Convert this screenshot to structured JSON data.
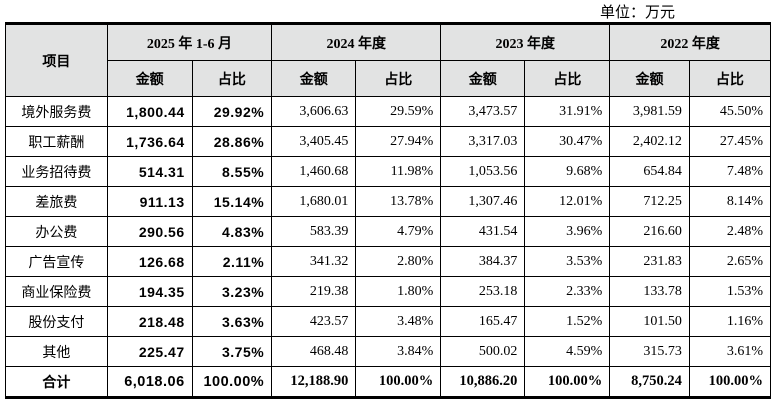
{
  "unit_label": "单位：万元",
  "colors": {
    "header_bg": "#e2e3e3",
    "border": "#000000",
    "text": "#000000",
    "page_bg": "#ffffff"
  },
  "table": {
    "item_header": "项目",
    "amount_header": "金额",
    "ratio_header": "占比",
    "period_headers": [
      "2025 年 1-6 月",
      "2024 年度",
      "2023 年度",
      "2022 年度"
    ],
    "rows": [
      {
        "item": "境外服务费",
        "values": [
          "1,800.44",
          "29.92%",
          "3,606.63",
          "29.59%",
          "3,473.57",
          "31.91%",
          "3,981.59",
          "45.50%"
        ]
      },
      {
        "item": "职工薪酬",
        "values": [
          "1,736.64",
          "28.86%",
          "3,405.45",
          "27.94%",
          "3,317.03",
          "30.47%",
          "2,402.12",
          "27.45%"
        ]
      },
      {
        "item": "业务招待费",
        "values": [
          "514.31",
          "8.55%",
          "1,460.68",
          "11.98%",
          "1,053.56",
          "9.68%",
          "654.84",
          "7.48%"
        ]
      },
      {
        "item": "差旅费",
        "values": [
          "911.13",
          "15.14%",
          "1,680.01",
          "13.78%",
          "1,307.46",
          "12.01%",
          "712.25",
          "8.14%"
        ]
      },
      {
        "item": "办公费",
        "values": [
          "290.56",
          "4.83%",
          "583.39",
          "4.79%",
          "431.54",
          "3.96%",
          "216.60",
          "2.48%"
        ]
      },
      {
        "item": "广告宣传",
        "values": [
          "126.68",
          "2.11%",
          "341.32",
          "2.80%",
          "384.37",
          "3.53%",
          "231.83",
          "2.65%"
        ]
      },
      {
        "item": "商业保险费",
        "values": [
          "194.35",
          "3.23%",
          "219.38",
          "1.80%",
          "253.18",
          "2.33%",
          "133.78",
          "1.53%"
        ]
      },
      {
        "item": "股份支付",
        "values": [
          "218.48",
          "3.63%",
          "423.57",
          "3.48%",
          "165.47",
          "1.52%",
          "101.50",
          "1.16%"
        ]
      },
      {
        "item": "其他",
        "values": [
          "225.47",
          "3.75%",
          "468.48",
          "3.84%",
          "500.02",
          "4.59%",
          "315.73",
          "3.61%"
        ]
      }
    ],
    "total_row": {
      "item": "合计",
      "values": [
        "6,018.06",
        "100.00%",
        "12,188.90",
        "100.00%",
        "10,886.20",
        "100.00%",
        "8,750.24",
        "100.00%"
      ]
    }
  }
}
